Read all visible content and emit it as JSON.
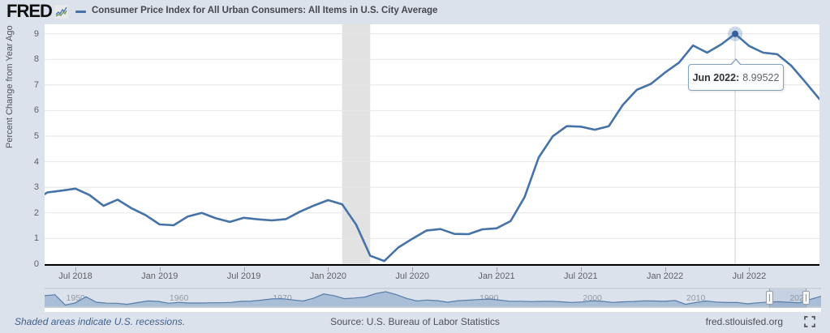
{
  "header": {
    "logo_text": "FRED",
    "title": "Consumer Price Index for All Urban Consumers: All Items in U.S. City Average"
  },
  "tooltip": {
    "label": "Jun 2022:",
    "value": "8.99522"
  },
  "footer": {
    "recessions_note": "Shaded areas indicate U.S. recessions.",
    "source": "Source: U.S. Bureau of Labor Statistics",
    "site": "fred.stlouisfed.org"
  },
  "colors": {
    "page_bg": "#dbe2eb",
    "plot_bg": "#ffffff",
    "line": "#4572a7",
    "grid": "#e6e6e6",
    "recession_band": "#e2e2e2",
    "crosshair": "#ccd2da",
    "marker_halo": "rgba(69,114,167,0.28)",
    "axis_line": "#000000",
    "navigator_fill": "#a9bed7",
    "navigator_stroke": "#567ca9",
    "navigator_border": "#b9c1ca"
  },
  "chart_data": {
    "type": "line",
    "title": "Consumer Price Index for All Urban Consumers: All Items in U.S. City Average",
    "ylabel": "Percent Change from Year Ago",
    "ylim": [
      0,
      9
    ],
    "yticks": [
      0,
      1,
      2,
      3,
      4,
      5,
      6,
      7,
      8,
      9
    ],
    "xticks": [
      "Jul 2018",
      "Jan 2019",
      "Jul 2019",
      "Jan 2020",
      "Jul 2020",
      "Jan 2021",
      "Jul 2021",
      "Jan 2022",
      "Jul 2022"
    ],
    "grid": "horizontal",
    "months": [
      "2018-04",
      "2018-05",
      "2018-06",
      "2018-07",
      "2018-08",
      "2018-09",
      "2018-10",
      "2018-11",
      "2018-12",
      "2019-01",
      "2019-02",
      "2019-03",
      "2019-04",
      "2019-05",
      "2019-06",
      "2019-07",
      "2019-08",
      "2019-09",
      "2019-10",
      "2019-11",
      "2019-12",
      "2020-01",
      "2020-02",
      "2020-03",
      "2020-04",
      "2020-05",
      "2020-06",
      "2020-07",
      "2020-08",
      "2020-09",
      "2020-10",
      "2020-11",
      "2020-12",
      "2021-01",
      "2021-02",
      "2021-03",
      "2021-04",
      "2021-05",
      "2021-06",
      "2021-07",
      "2021-08",
      "2021-09",
      "2021-10",
      "2021-11",
      "2021-12",
      "2022-01",
      "2022-02",
      "2022-03",
      "2022-04",
      "2022-05",
      "2022-06",
      "2022-07",
      "2022-08",
      "2022-09",
      "2022-10",
      "2022-11",
      "2022-12"
    ],
    "values": [
      2.46,
      2.8,
      2.87,
      2.95,
      2.7,
      2.28,
      2.52,
      2.18,
      1.91,
      1.55,
      1.52,
      1.86,
      2.0,
      1.79,
      1.65,
      1.81,
      1.75,
      1.71,
      1.76,
      2.05,
      2.29,
      2.5,
      2.34,
      1.54,
      0.33,
      0.12,
      0.65,
      0.99,
      1.31,
      1.37,
      1.18,
      1.17,
      1.36,
      1.4,
      1.68,
      2.62,
      4.16,
      4.99,
      5.39,
      5.37,
      5.25,
      5.39,
      6.22,
      6.81,
      7.04,
      7.48,
      7.87,
      8.54,
      8.26,
      8.58,
      8.995,
      8.52,
      8.26,
      8.2,
      7.75,
      7.11,
      6.45
    ],
    "highlight": {
      "month": "2022-06",
      "label": "Jun 2022",
      "value": 8.99522
    },
    "recession_bands": [
      {
        "from": "2020-02",
        "to": "2020-04"
      }
    ],
    "navigator": {
      "type": "area",
      "xticks": [
        "1950",
        "1960",
        "1970",
        "1980",
        "1990",
        "2000",
        "2010",
        "2020"
      ],
      "years": [
        1948,
        1949,
        1950,
        1951,
        1952,
        1953,
        1954,
        1955,
        1956,
        1957,
        1958,
        1959,
        1960,
        1961,
        1962,
        1963,
        1964,
        1965,
        1966,
        1967,
        1968,
        1969,
        1970,
        1971,
        1972,
        1973,
        1974,
        1975,
        1976,
        1977,
        1978,
        1979,
        1980,
        1981,
        1982,
        1983,
        1984,
        1985,
        1986,
        1987,
        1988,
        1989,
        1990,
        1991,
        1992,
        1993,
        1994,
        1995,
        1996,
        1997,
        1998,
        1999,
        2000,
        2001,
        2002,
        2003,
        2004,
        2005,
        2006,
        2007,
        2008,
        2009,
        2010,
        2011,
        2012,
        2013,
        2014,
        2015,
        2016,
        2017,
        2018,
        2019,
        2020,
        2021,
        2022
      ],
      "values": [
        10.2,
        -1.2,
        1.3,
        7.9,
        1.9,
        0.8,
        0.7,
        -0.4,
        1.5,
        3.3,
        2.8,
        0.7,
        1.7,
        1.0,
        1.0,
        1.3,
        1.3,
        1.6,
        2.9,
        3.1,
        4.2,
        5.5,
        5.7,
        4.4,
        3.2,
        6.2,
        11.0,
        9.1,
        5.8,
        6.5,
        7.6,
        11.3,
        13.5,
        10.3,
        6.2,
        3.2,
        4.3,
        3.6,
        1.9,
        3.6,
        4.1,
        4.8,
        5.4,
        4.2,
        3.0,
        3.0,
        2.6,
        2.8,
        3.0,
        2.3,
        1.6,
        2.2,
        3.4,
        2.8,
        1.6,
        2.3,
        2.7,
        3.4,
        3.2,
        2.9,
        3.8,
        -0.4,
        1.6,
        3.2,
        2.1,
        1.5,
        1.6,
        0.1,
        1.3,
        2.1,
        2.4,
        1.8,
        1.2,
        4.7,
        8.0
      ],
      "selected_range": [
        "2018-04",
        "2022-12"
      ]
    }
  }
}
